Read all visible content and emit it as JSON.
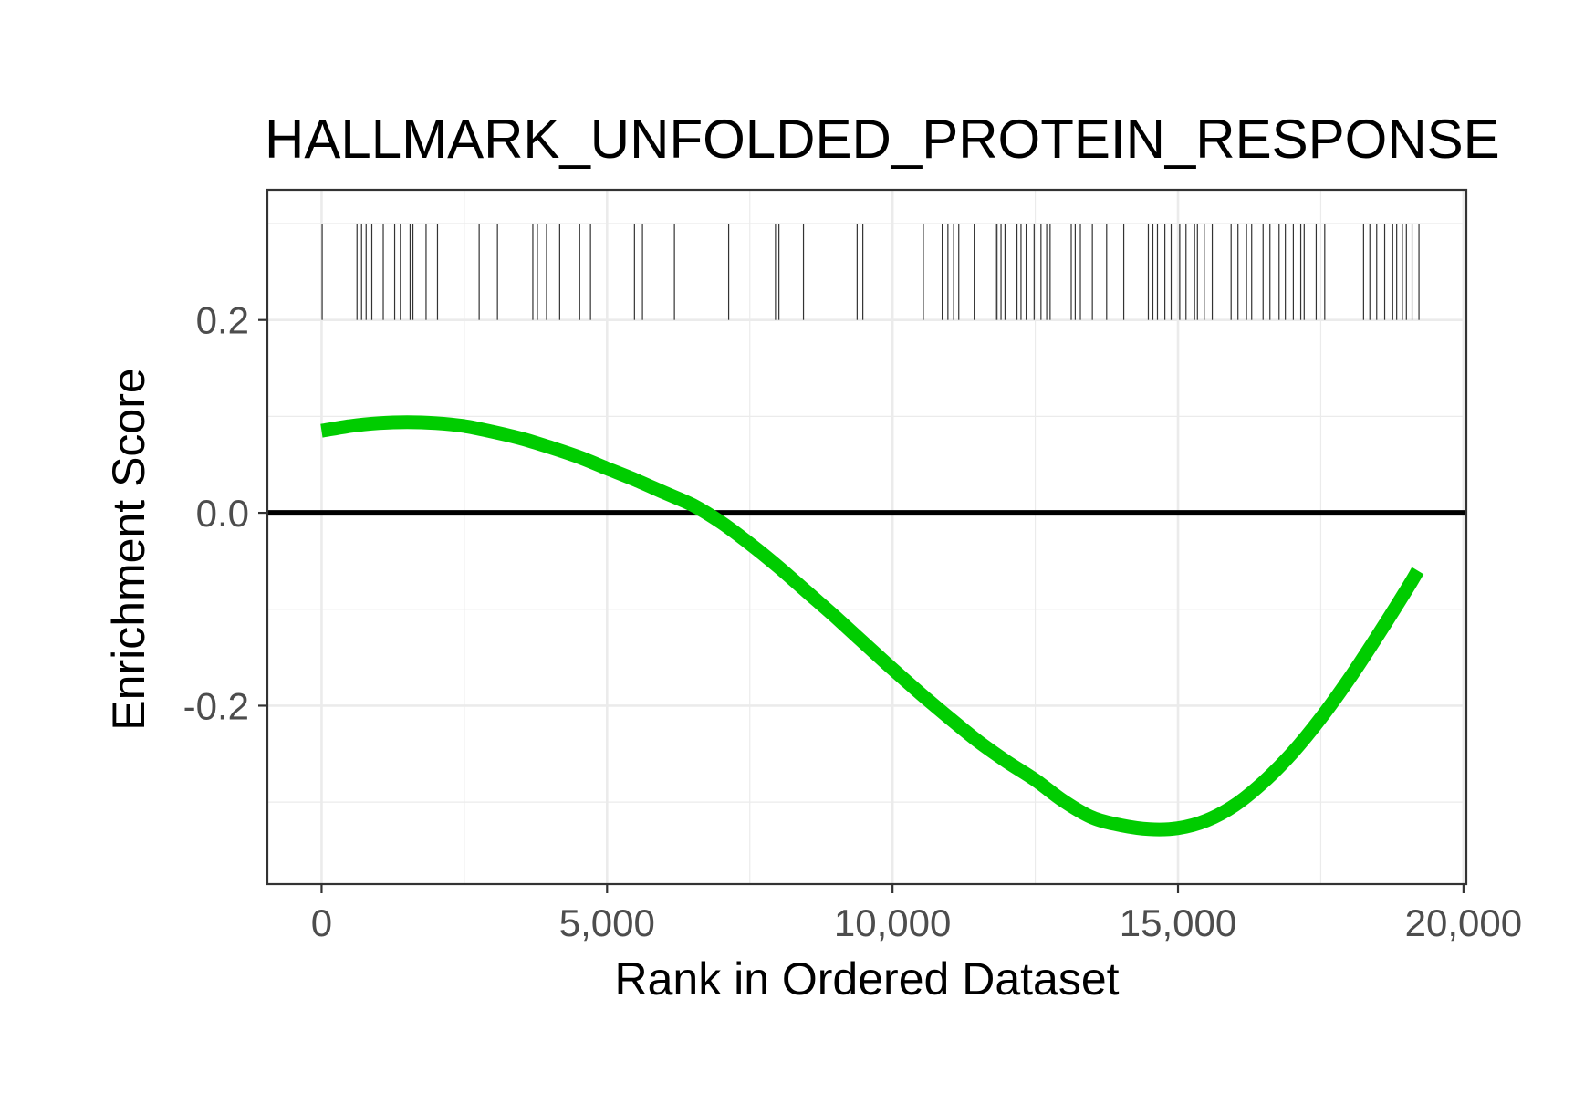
{
  "chart_data": {
    "type": "line",
    "title": "HALLMARK_UNFOLDED_PROTEIN_RESPONSE",
    "xlabel": "Rank in Ordered Dataset",
    "ylabel": "Enrichment Score",
    "xlim": [
      -950,
      20050
    ],
    "ylim": [
      -0.385,
      0.335
    ],
    "x_ticks": [
      0,
      5000,
      10000,
      15000,
      20000
    ],
    "x_tick_labels": [
      "0",
      "5,000",
      "10,000",
      "15,000",
      "20,000"
    ],
    "y_ticks": [
      0.2,
      0.0,
      -0.2
    ],
    "y_tick_labels": [
      "0.2",
      "0.0",
      "-0.2"
    ],
    "grid": true,
    "zero_line": 0.0,
    "colors": {
      "curve": "#00cc00",
      "zero_line": "#000000",
      "hits": "#333333",
      "grid": "#ebebeb",
      "panel_border": "#333333"
    },
    "series": [
      {
        "x": [
          0,
          500,
          1000,
          1500,
          2000,
          2500,
          3000,
          3500,
          4000,
          4500,
          5000,
          5500,
          6000,
          6500,
          7000,
          7500,
          8000,
          8500,
          9000,
          9500,
          10000,
          10500,
          11000,
          11500,
          12000,
          12500,
          13000,
          13500,
          14000,
          14500,
          15000,
          15500,
          16000,
          16500,
          17000,
          17500,
          18000,
          18500,
          19000,
          19200
        ],
        "y": [
          0.085,
          0.09,
          0.093,
          0.094,
          0.093,
          0.09,
          0.084,
          0.077,
          0.068,
          0.058,
          0.046,
          0.034,
          0.021,
          0.008,
          -0.01,
          -0.032,
          -0.056,
          -0.082,
          -0.108,
          -0.135,
          -0.162,
          -0.188,
          -0.213,
          -0.237,
          -0.258,
          -0.277,
          -0.299,
          -0.316,
          -0.324,
          -0.328,
          -0.327,
          -0.319,
          -0.303,
          -0.279,
          -0.249,
          -0.213,
          -0.172,
          -0.127,
          -0.08,
          -0.06
        ]
      }
    ],
    "hit_ranks": [
      10,
      620,
      700,
      780,
      880,
      1080,
      1280,
      1380,
      1550,
      1600,
      1830,
      2030,
      2760,
      3080,
      3700,
      3780,
      3940,
      4170,
      4520,
      4710,
      5480,
      5620,
      6180,
      7130,
      7950,
      8010,
      8440,
      9380,
      9480,
      10540,
      10870,
      10970,
      11070,
      11160,
      11430,
      11800,
      11830,
      11900,
      11970,
      12180,
      12250,
      12340,
      12480,
      12600,
      12700,
      12760,
      13130,
      13200,
      13290,
      13500,
      13750,
      14050,
      14480,
      14560,
      14640,
      14770,
      14880,
      15030,
      15140,
      15290,
      15340,
      15460,
      15600,
      15930,
      16050,
      16200,
      16290,
      16490,
      16610,
      16770,
      16880,
      17020,
      17150,
      17210,
      17420,
      17570,
      18250,
      18360,
      18480,
      18620,
      18760,
      18830,
      18930,
      19000,
      19100,
      19220
    ]
  }
}
